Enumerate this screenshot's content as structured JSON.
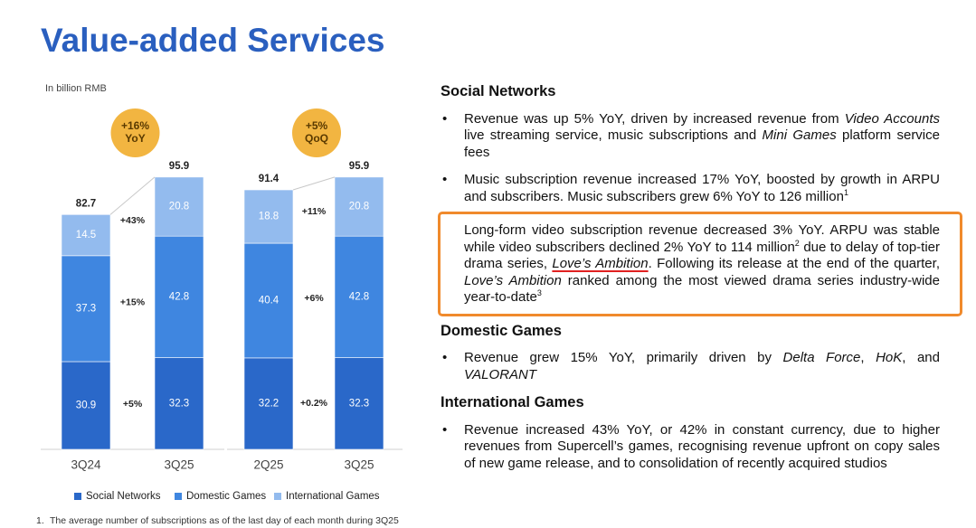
{
  "chart_data": {
    "type": "stacked-bar",
    "title": "Value-added Services",
    "unit_label": "In billion RMB",
    "categories": [
      "3Q24",
      "3Q25",
      "2Q25",
      "3Q25"
    ],
    "series": [
      {
        "name": "Social Networks",
        "color": "#2a68c9",
        "values": [
          30.9,
          32.3,
          32.2,
          32.3
        ]
      },
      {
        "name": "Domestic Games",
        "color": "#3f86e0",
        "values": [
          37.3,
          42.8,
          40.4,
          42.8
        ]
      },
      {
        "name": "International Games",
        "color": "#93bbee",
        "values": [
          14.5,
          20.8,
          18.8,
          20.8
        ]
      }
    ],
    "totals": [
      82.7,
      95.9,
      91.4,
      95.9
    ],
    "comparisons": [
      {
        "badge": [
          "+16%",
          "YoY"
        ],
        "changes": [
          "+5%",
          "+15%",
          "+43%"
        ]
      },
      {
        "badge": [
          "+5%",
          "QoQ"
        ],
        "changes": [
          "+0.2%",
          "+6%",
          "+11%"
        ]
      }
    ],
    "footnote": {
      "number": "1.",
      "text": "The average number of subscriptions as of the last day of each month during 3Q25"
    }
  },
  "text_sections": [
    {
      "heading": "Social Networks",
      "items": [
        {
          "bullet": true,
          "runs": [
            {
              "text": "Revenue was up 5% YoY, driven by increased revenue from "
            },
            {
              "text": "Video Accounts",
              "italic": true
            },
            {
              "text": " live streaming service, music subscriptions and "
            },
            {
              "text": "Mini Games",
              "italic": true
            },
            {
              "text": " platform service fees"
            }
          ]
        },
        {
          "bullet": true,
          "runs": [
            {
              "text": "Music subscription revenue increased 17% YoY, boosted by growth in ARPU and subscribers. Music subscribers grew 6% YoY to 126 million"
            },
            {
              "text": "1",
              "sup": true
            }
          ]
        },
        {
          "bullet": false,
          "boxed": true,
          "runs": [
            {
              "text": "Long-form video subscription revenue decreased 3% YoY. ARPU was stable while video subscribers declined 2% YoY to 114 million"
            },
            {
              "text": "2",
              "sup": true
            },
            {
              "text": " due to delay of top-tier drama series, "
            },
            {
              "text": "Love’s Ambition",
              "italic": true,
              "underline": true
            },
            {
              "text": ". Following its release at the end of the quarter, "
            },
            {
              "text": "Love’s Ambition",
              "italic": true
            },
            {
              "text": " ranked among the most viewed drama series industry-wide year-to-date"
            },
            {
              "text": "3",
              "sup": true
            }
          ]
        }
      ]
    },
    {
      "heading": "Domestic Games",
      "items": [
        {
          "bullet": true,
          "runs": [
            {
              "text": "Revenue grew 15% YoY, primarily driven by "
            },
            {
              "text": "Delta Force",
              "italic": true
            },
            {
              "text": ", "
            },
            {
              "text": "HoK",
              "italic": true
            },
            {
              "text": ", and "
            },
            {
              "text": "VALORANT",
              "italic": true
            }
          ]
        }
      ]
    },
    {
      "heading": "International Games",
      "items": [
        {
          "bullet": true,
          "runs": [
            {
              "text": "Revenue increased 43% YoY, or 42% in constant currency, due to higher revenues from Supercell’s games, recognising revenue upfront on copy sales of new game release, and to consolidation of recently acquired studios"
            }
          ]
        }
      ]
    }
  ]
}
